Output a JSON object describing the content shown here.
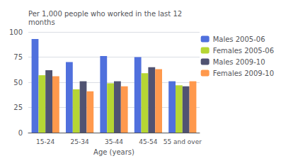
{
  "chart_data": {
    "type": "bar",
    "xlabel": "Age (years)",
    "ylabel": "Per 1,000 people who worked in the last 12\nmonths",
    "categories": [
      "15-24",
      "25-34",
      "35-44",
      "45-54",
      "55 and over"
    ],
    "series": [
      {
        "name": "Males 2005-06",
        "values": [
          93,
          70,
          76,
          75,
          51
        ]
      },
      {
        "name": "Females 2005-06",
        "values": [
          57,
          43,
          49,
          59,
          47
        ]
      },
      {
        "name": "Males 2009-10",
        "values": [
          62,
          51,
          51,
          65,
          46
        ]
      },
      {
        "name": "Females 2009-10",
        "values": [
          56,
          41,
          46,
          63,
          51
        ]
      }
    ],
    "ylim": [
      0,
      100
    ],
    "yticks": [
      0,
      25,
      50,
      75,
      100
    ],
    "grid": true,
    "legend": "upper right"
  }
}
